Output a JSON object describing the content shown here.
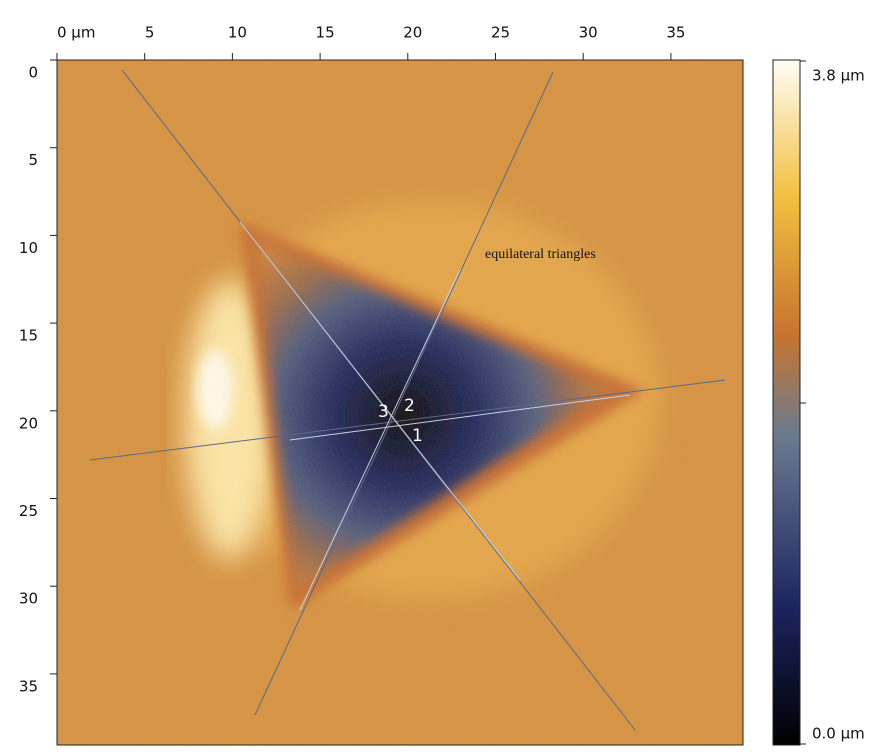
{
  "x_axis": {
    "ticks": [
      "0 µm",
      "5",
      "10",
      "15",
      "20",
      "25",
      "30",
      "35"
    ]
  },
  "y_axis": {
    "ticks": [
      "0",
      "5",
      "10",
      "15",
      "20",
      "25",
      "30",
      "35"
    ]
  },
  "colorbar": {
    "max_label": "3.8 µm",
    "min_label": "0.0 µm"
  },
  "annotation": "equilateral triangles",
  "line_labels": [
    "1",
    "2",
    "3"
  ]
}
